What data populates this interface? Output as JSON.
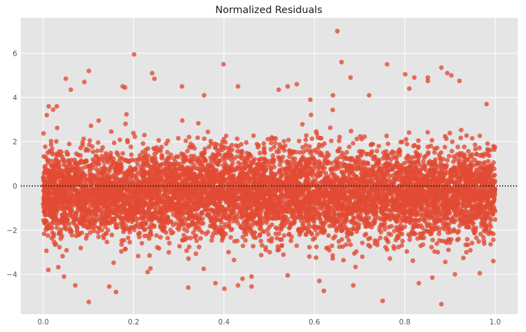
{
  "chart_data": {
    "type": "scatter",
    "title": "Normalized Residuals",
    "xlabel": "",
    "ylabel": "",
    "xlim": [
      -0.05,
      1.05
    ],
    "ylim": [
      -5.8,
      7.6
    ],
    "x_ticks": [
      0.0,
      0.2,
      0.4,
      0.6,
      0.8,
      1.0
    ],
    "x_tick_labels": [
      "0.0",
      "0.2",
      "0.4",
      "0.6",
      "0.8",
      "1.0"
    ],
    "y_ticks": [
      -4,
      -2,
      0,
      2,
      4,
      6
    ],
    "y_tick_labels": [
      "−4",
      "−2",
      "0",
      "2",
      "4",
      "6"
    ],
    "grid": true,
    "reference_line": {
      "y": 0,
      "style": "dotted",
      "color": "#222222"
    },
    "point_color": "#e24a33",
    "background_color": "#e5e5e5",
    "series": [
      {
        "points": [
          [
            0.651,
            7.0
          ],
          [
            0.201,
            5.95
          ],
          [
            0.66,
            5.6
          ],
          [
            0.399,
            5.5
          ],
          [
            0.761,
            5.5
          ],
          [
            0.241,
            5.1
          ],
          [
            0.801,
            5.05
          ],
          [
            0.894,
            5.1
          ],
          [
            0.903,
            5.0
          ],
          [
            0.05,
            4.85
          ],
          [
            0.821,
            4.9
          ],
          [
            0.851,
            4.9
          ],
          [
            0.246,
            4.85
          ],
          [
            0.091,
            4.7
          ],
          [
            0.68,
            4.9
          ],
          [
            0.431,
            4.5
          ],
          [
            0.181,
            4.45
          ],
          [
            0.851,
            4.75
          ],
          [
            0.921,
            4.75
          ],
          [
            0.061,
            4.35
          ],
          [
            0.176,
            4.5
          ],
          [
            0.81,
            4.4
          ],
          [
            0.307,
            4.5
          ],
          [
            0.541,
            4.5
          ],
          [
            0.981,
            3.7
          ],
          [
            0.008,
            3.2
          ],
          [
            0.012,
            3.6
          ],
          [
            0.022,
            3.45
          ],
          [
            0.03,
            3.6
          ],
          [
            0.641,
            4.1
          ],
          [
            0.721,
            4.1
          ],
          [
            0.591,
            3.9
          ],
          [
            0.521,
            4.35
          ],
          [
            0.561,
            4.6
          ],
          [
            0.356,
            4.1
          ],
          [
            0.101,
            5.2
          ],
          [
            0.881,
            5.35
          ],
          [
            0.0,
            0.0
          ]
        ],
        "outliers_low": [
          [
            0.101,
            -5.25
          ],
          [
            0.881,
            -5.35
          ],
          [
            0.751,
            -5.2
          ],
          [
            0.161,
            -4.8
          ],
          [
            0.146,
            -4.55
          ],
          [
            0.401,
            -4.65
          ],
          [
            0.321,
            -4.6
          ],
          [
            0.071,
            -4.5
          ],
          [
            0.381,
            -4.4
          ],
          [
            0.621,
            -4.75
          ],
          [
            0.686,
            -4.5
          ],
          [
            0.831,
            -4.4
          ],
          [
            0.431,
            -4.5
          ],
          [
            0.461,
            -4.55
          ],
          [
            0.461,
            -4.1
          ],
          [
            0.441,
            -4.2
          ],
          [
            0.541,
            -4.05
          ],
          [
            0.611,
            -4.3
          ],
          [
            0.911,
            -4.0
          ],
          [
            0.861,
            -4.15
          ],
          [
            0.046,
            -4.1
          ],
          [
            0.231,
            -3.9
          ],
          [
            0.966,
            -3.95
          ],
          [
            0.996,
            -3.4
          ],
          [
            0.501,
            -3.0
          ]
        ]
      }
    ],
    "dense_band": {
      "n_points": 7000,
      "x_range": [
        0.0,
        1.0
      ],
      "center": -0.35,
      "sd": 1.0
    }
  }
}
